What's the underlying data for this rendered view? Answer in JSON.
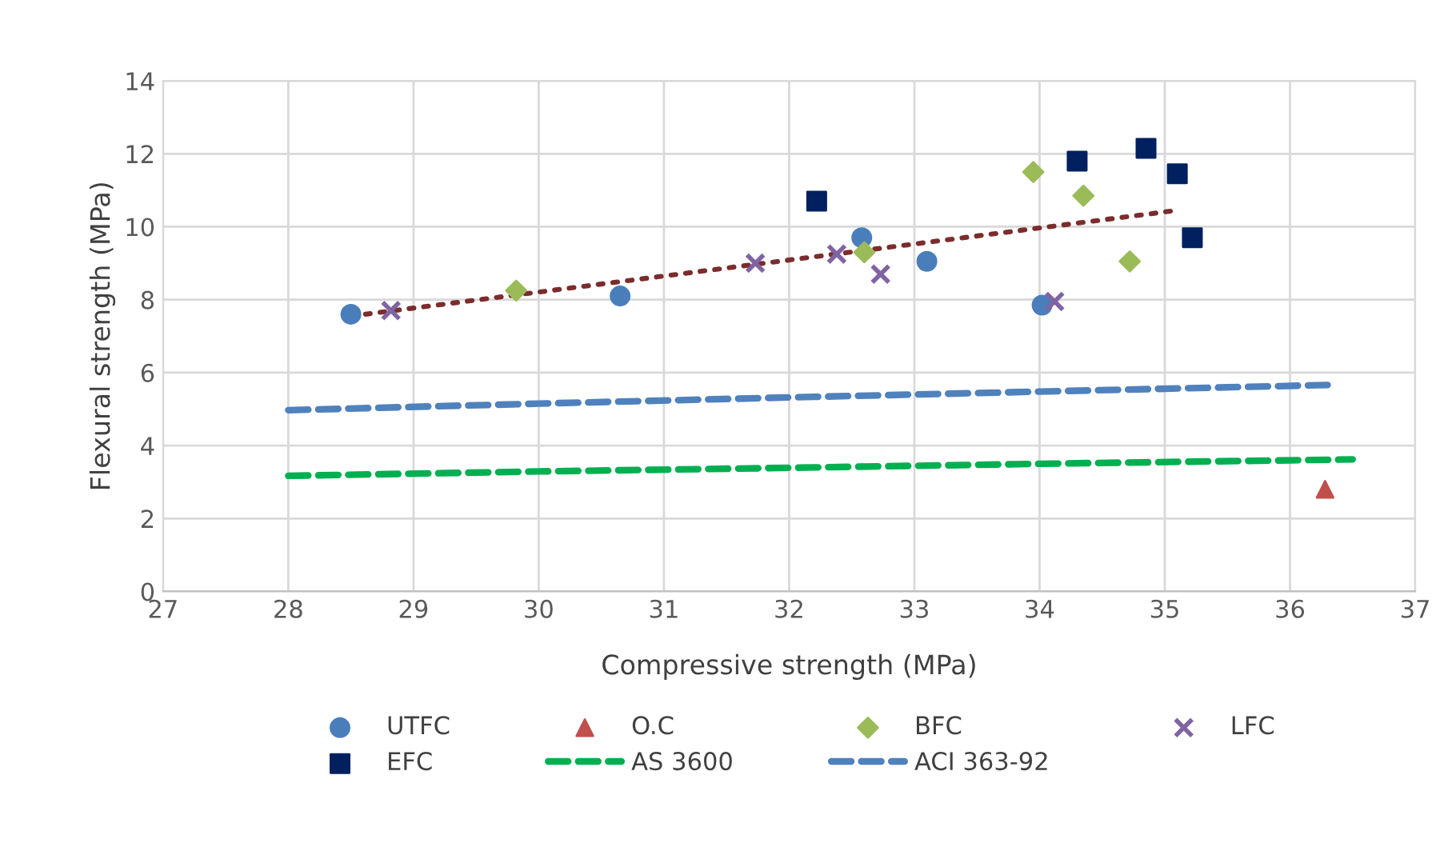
{
  "chart_data": {
    "type": "scatter",
    "xlabel": "Compressive strength (MPa)",
    "ylabel": "Flexural strength (MPa)",
    "xlim": [
      27,
      37
    ],
    "xticks": [
      27,
      28,
      29,
      30,
      31,
      32,
      33,
      34,
      35,
      36,
      37
    ],
    "ylim": [
      0,
      14
    ],
    "yticks": [
      0,
      2,
      4,
      6,
      8,
      10,
      12,
      14
    ],
    "grid": true,
    "legend": "bottom",
    "series": [
      {
        "name": "UTFC",
        "color": "#4a7ebb",
        "marker": "circle",
        "x": [
          28.5,
          30.65,
          32.58,
          33.1,
          34.02
        ],
        "values": [
          7.6,
          8.1,
          9.7,
          9.05,
          7.85
        ]
      },
      {
        "name": "O.C",
        "color": "#c0504d",
        "marker": "triangle",
        "x": [
          36.28
        ],
        "values": [
          2.8
        ]
      },
      {
        "name": "BFC",
        "color": "#9bbb59",
        "marker": "diamond",
        "x": [
          29.82,
          32.6,
          33.95,
          34.35,
          34.72
        ],
        "values": [
          8.25,
          9.3,
          11.5,
          10.85,
          9.05
        ]
      },
      {
        "name": "LFC",
        "color": "#8064a2",
        "marker": "cross",
        "x": [
          28.82,
          31.73,
          32.38,
          32.73,
          34.12
        ],
        "values": [
          7.7,
          9.0,
          9.25,
          8.7,
          7.95
        ]
      },
      {
        "name": "EFC",
        "color": "#002060",
        "marker": "square",
        "x": [
          32.22,
          34.3,
          34.85,
          35.1,
          35.22
        ],
        "values": [
          10.7,
          11.8,
          12.15,
          11.45,
          9.7
        ]
      },
      {
        "name": "AS 3600",
        "type": "line",
        "color": "#00b050",
        "line_style": "dashed",
        "x": [
          28,
          30,
          32,
          34,
          36.5
        ],
        "values": [
          3.17,
          3.29,
          3.39,
          3.5,
          3.62
        ]
      },
      {
        "name": "ACI 363-92",
        "type": "line",
        "color": "#4f81bd",
        "line_style": "dashed",
        "x": [
          28,
          30,
          32,
          34,
          36.3
        ],
        "values": [
          4.97,
          5.15,
          5.32,
          5.48,
          5.66
        ]
      },
      {
        "type": "line",
        "color": "#7b2c2c",
        "line_style": "dotted",
        "x": [
          28.5,
          35.1
        ],
        "values": [
          7.55,
          10.45
        ]
      }
    ]
  }
}
